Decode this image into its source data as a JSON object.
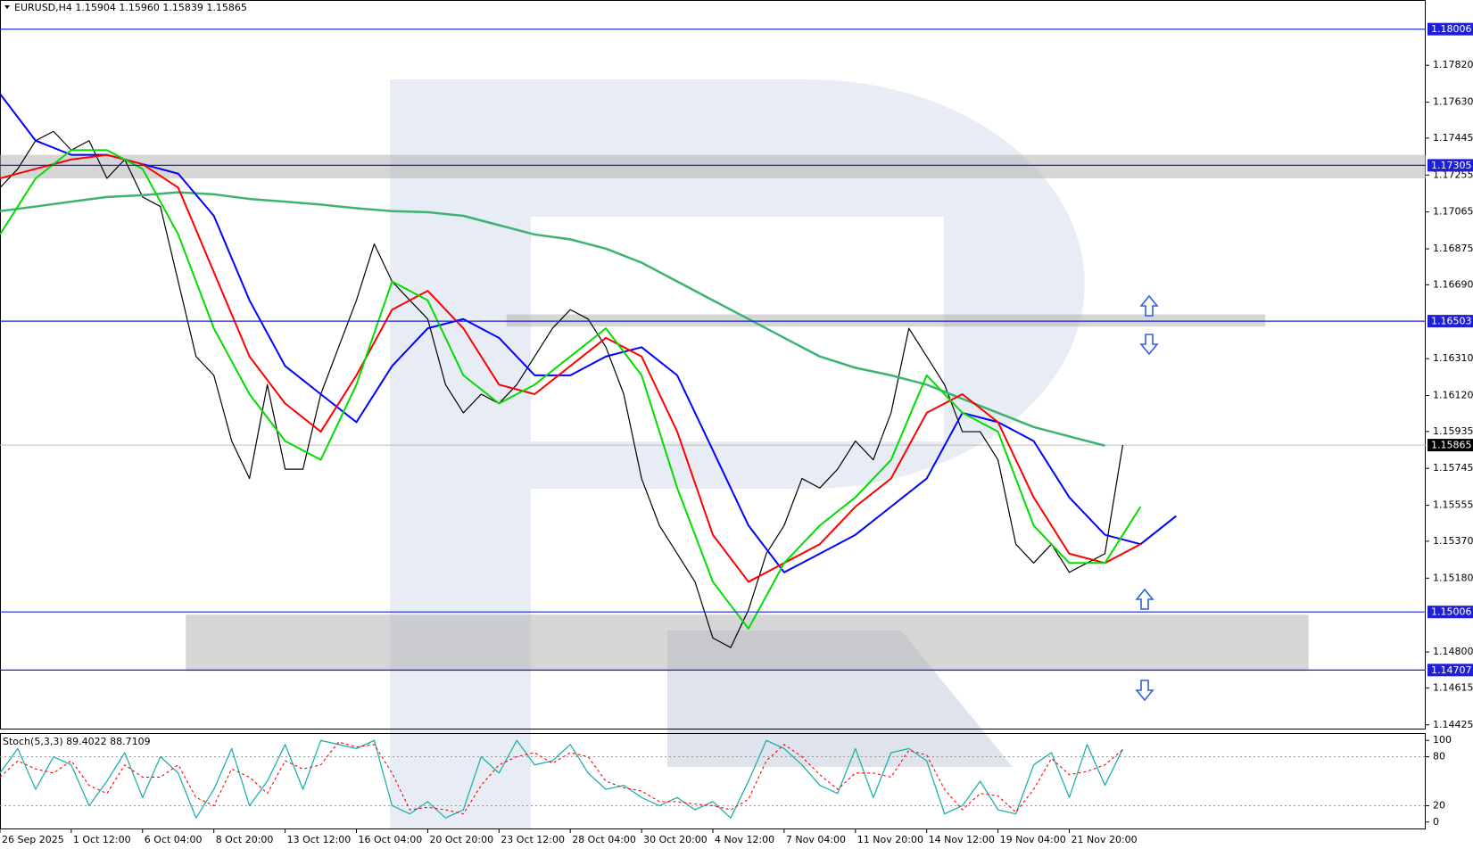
{
  "chart_data": [
    {
      "type": "line",
      "title": "EURUSD,H4  1.15904 1.15960 1.15839 1.15865",
      "xlim": [
        0,
        320
      ],
      "ylim": [
        1.14401,
        1.18156
      ],
      "yticks": [
        {
          "value": 1.1782,
          "label": "1.17820"
        },
        {
          "value": 1.1763,
          "label": "1.17630"
        },
        1.17445,
        1.17255,
        1.17065,
        1.16875,
        {
          "value": 1.1669,
          "label": "1.16690"
        },
        {
          "value": 1.1631,
          "label": "1.16310"
        },
        {
          "value": 1.1612,
          "label": "1.16120"
        },
        1.15935,
        1.15745,
        1.15555,
        {
          "value": 1.1537,
          "label": "1.15370"
        },
        {
          "value": 1.1518,
          "label": "1.15180"
        },
        {
          "value": 1.148,
          "label": "1.14800"
        },
        1.14615,
        1.14425
      ],
      "levels": [
        1.18006,
        1.17305,
        1.16503,
        1.15006,
        1.14707
      ],
      "last": 1.15865,
      "zones": [
        {
          "x": [
            0,
            320
          ],
          "y": [
            1.17359,
            1.17238
          ]
        },
        {
          "x": [
            113.7,
            284
          ],
          "y": [
            1.16538,
            1.16475
          ]
        },
        {
          "x": [
            41.7,
            293.7
          ],
          "y": [
            1.14992,
            1.14703
          ]
        }
      ],
      "series": [
        {
          "color": "#000000",
          "width": 1.2,
          "x": [
            0,
            4,
            8,
            12,
            16,
            20,
            24,
            28,
            32,
            36,
            40,
            44,
            48,
            52,
            56,
            60,
            64,
            68,
            72,
            76,
            80,
            84,
            88,
            92,
            96,
            100,
            104,
            108,
            112,
            116,
            120,
            124,
            128,
            132,
            136,
            140,
            144,
            148,
            152,
            156,
            160,
            164,
            168,
            172,
            176,
            180,
            184,
            188,
            192,
            196,
            200,
            204,
            208,
            212,
            216,
            220,
            224,
            228,
            232,
            236,
            240,
            244,
            248,
            252
          ],
          "values": [
            1.1719,
            1.17287,
            1.17432,
            1.1748,
            1.17383,
            1.17432,
            1.17238,
            1.17335,
            1.17142,
            1.17093,
            1.16707,
            1.16321,
            1.16224,
            1.15886,
            1.15693,
            1.16176,
            1.15741,
            1.15741,
            1.16127,
            1.16369,
            1.1661,
            1.169,
            1.16707,
            1.1661,
            1.16514,
            1.16176,
            1.16031,
            1.16127,
            1.16079,
            1.16176,
            1.16321,
            1.16466,
            1.16562,
            1.16514,
            1.16369,
            1.16127,
            1.15693,
            1.15451,
            1.15306,
            1.15161,
            1.14872,
            1.14823,
            1.15017,
            1.15306,
            1.15451,
            1.15693,
            1.15644,
            1.15741,
            1.15886,
            1.15789,
            1.16031,
            1.16466,
            1.16321,
            1.16176,
            1.15934,
            1.15934,
            1.15789,
            1.15355,
            1.15258,
            1.15355,
            1.1521,
            1.15258,
            1.15306,
            1.15865
          ]
        },
        {
          "color": "#3cb371",
          "width": 2.5,
          "x": [
            0,
            8,
            16,
            24,
            32,
            40,
            48,
            56,
            64,
            72,
            80,
            88,
            96,
            104,
            112,
            120,
            128,
            136,
            144,
            152,
            160,
            168,
            176,
            184,
            192,
            200,
            208,
            216,
            224,
            232,
            240,
            248,
            256,
            264
          ],
          "values": [
            1.17069,
            1.17093,
            1.17118,
            1.17142,
            1.17151,
            1.17166,
            1.17156,
            1.17132,
            1.17118,
            1.17103,
            1.17084,
            1.17069,
            1.17064,
            1.17045,
            1.16997,
            1.16949,
            1.16924,
            1.16876,
            1.16804,
            1.16707,
            1.1661,
            1.16514,
            1.16417,
            1.16321,
            1.16263,
            1.16224,
            1.16176,
            1.16103,
            1.16031,
            1.15958,
            1.1591,
            1.15862,
            null,
            null
          ]
        },
        {
          "color": "#0000ff",
          "width": 2,
          "x": [
            0,
            8,
            16,
            24,
            32,
            40,
            48,
            56,
            64,
            72,
            80,
            88,
            96,
            104,
            112,
            120,
            128,
            136,
            144,
            152,
            160,
            168,
            176,
            184,
            192,
            200,
            208,
            216,
            224,
            232,
            240,
            248,
            256,
            264
          ],
          "values": [
            1.17673,
            1.17432,
            1.17359,
            1.17359,
            1.17311,
            1.17262,
            1.17045,
            1.1661,
            1.16272,
            1.16127,
            1.15983,
            1.16272,
            1.16466,
            1.16514,
            1.16417,
            1.16224,
            1.16224,
            1.16321,
            1.16369,
            1.16224,
            1.15838,
            1.15451,
            1.1521,
            1.15306,
            1.15403,
            1.15548,
            1.15693,
            1.16031,
            1.15983,
            1.15886,
            1.15596,
            1.15403,
            1.15355,
            1.155
          ]
        },
        {
          "color": "#ff0000",
          "width": 2,
          "x": [
            0,
            8,
            16,
            24,
            32,
            40,
            48,
            56,
            64,
            72,
            80,
            88,
            96,
            104,
            112,
            120,
            128,
            136,
            144,
            152,
            160,
            168,
            176,
            184,
            192,
            200,
            208,
            216,
            224,
            232,
            240,
            248,
            256,
            264
          ],
          "values": [
            1.17238,
            1.17287,
            1.17335,
            1.17359,
            1.17311,
            1.1719,
            1.16755,
            1.16321,
            1.16079,
            1.15934,
            1.16224,
            1.16562,
            1.16659,
            1.16466,
            1.16176,
            1.16127,
            1.16272,
            1.16417,
            1.16321,
            1.15934,
            1.15403,
            1.15161,
            1.15258,
            1.15355,
            1.15548,
            1.15693,
            1.16031,
            1.16127,
            1.15983,
            1.15596,
            1.15306,
            1.15258,
            1.15355,
            null
          ]
        },
        {
          "color": "#00dd00",
          "width": 2,
          "x": [
            0,
            8,
            16,
            24,
            32,
            40,
            48,
            56,
            64,
            72,
            80,
            88,
            96,
            104,
            112,
            120,
            128,
            136,
            144,
            152,
            160,
            168,
            176,
            184,
            192,
            200,
            208,
            216,
            224,
            232,
            240,
            248,
            256,
            264
          ],
          "values": [
            1.16949,
            1.17238,
            1.17383,
            1.17383,
            1.17287,
            1.16949,
            1.16466,
            1.16127,
            1.15886,
            1.15789,
            1.16176,
            1.16707,
            1.1661,
            1.16224,
            1.16079,
            1.16176,
            1.16321,
            1.16466,
            1.16224,
            1.15644,
            1.15161,
            1.1492,
            1.15258,
            1.15451,
            1.15596,
            1.15789,
            1.16224,
            1.16031,
            1.15934,
            1.15451,
            1.15258,
            1.15258,
            1.15548,
            null
          ]
        }
      ]
    },
    {
      "type": "line",
      "title": "Stoch(5,3,3) 89.4022 88.7109",
      "xlim": [
        0,
        320
      ],
      "ylim": [
        -9,
        109
      ],
      "yticks": [
        100,
        80,
        20,
        0
      ],
      "guides": [
        80,
        20
      ],
      "xticks": [
        {
          "value": 0,
          "label": "26 Sep 2025"
        },
        {
          "value": 16,
          "label": "1 Oct 12:00"
        },
        {
          "value": 32,
          "label": "6 Oct 04:00"
        },
        {
          "value": 48,
          "label": "8 Oct 20:00"
        },
        {
          "value": 64,
          "label": "13 Oct 12:00"
        },
        {
          "value": 80,
          "label": "16 Oct 04:00"
        },
        {
          "value": 96,
          "label": "20 Oct 20:00"
        },
        {
          "value": 112,
          "label": "23 Oct 12:00"
        },
        {
          "value": 128,
          "label": "28 Oct 04:00"
        },
        {
          "value": 144,
          "label": "30 Oct 20:00"
        },
        {
          "value": 160,
          "label": "4 Nov 12:00"
        },
        {
          "value": 176,
          "label": "7 Nov 04:00"
        },
        {
          "value": 192,
          "label": "11 Nov 20:00"
        },
        {
          "value": 208,
          "label": "14 Nov 12:00"
        },
        {
          "value": 224,
          "label": "19 Nov 04:00"
        },
        {
          "value": 240,
          "label": "21 Nov 20:00"
        }
      ],
      "series": [
        {
          "color": "#20b2aa",
          "width": 1.3,
          "x": [
            0,
            4,
            8,
            12,
            16,
            20,
            24,
            28,
            32,
            36,
            40,
            44,
            48,
            52,
            56,
            60,
            64,
            68,
            72,
            76,
            80,
            84,
            88,
            92,
            96,
            100,
            104,
            108,
            112,
            116,
            120,
            124,
            128,
            132,
            136,
            140,
            144,
            148,
            152,
            156,
            160,
            164,
            168,
            172,
            176,
            180,
            184,
            188,
            192,
            196,
            200,
            204,
            208,
            212,
            216,
            220,
            224,
            228,
            232,
            236,
            240,
            244,
            248,
            252
          ],
          "values": [
            60,
            90,
            40,
            80,
            70,
            20,
            50,
            85,
            30,
            80,
            60,
            5,
            40,
            90,
            20,
            50,
            95,
            40,
            100,
            95,
            90,
            100,
            20,
            10,
            25,
            5,
            15,
            80,
            60,
            100,
            70,
            75,
            95,
            60,
            40,
            45,
            30,
            20,
            30,
            15,
            25,
            5,
            50,
            100,
            90,
            70,
            45,
            35,
            90,
            30,
            85,
            90,
            75,
            10,
            20,
            50,
            15,
            10,
            70,
            85,
            30,
            95,
            45,
            89.4022
          ]
        },
        {
          "color": "#ff0000",
          "width": 1.1,
          "dash": true,
          "x": [
            0,
            4,
            8,
            12,
            16,
            20,
            24,
            28,
            32,
            36,
            40,
            44,
            48,
            52,
            56,
            60,
            64,
            68,
            72,
            76,
            80,
            84,
            88,
            92,
            96,
            100,
            104,
            108,
            112,
            116,
            120,
            124,
            128,
            132,
            136,
            140,
            144,
            148,
            152,
            156,
            160,
            164,
            168,
            172,
            176,
            180,
            184,
            188,
            192,
            196,
            200,
            204,
            208,
            212,
            216,
            220,
            224,
            228,
            232,
            236,
            240,
            244,
            248,
            252
          ],
          "values": [
            55,
            75,
            65,
            60,
            75,
            45,
            35,
            70,
            55,
            55,
            70,
            30,
            20,
            65,
            55,
            35,
            75,
            65,
            70,
            98,
            92,
            95,
            60,
            15,
            18,
            15,
            10,
            45,
            70,
            80,
            85,
            72,
            85,
            80,
            50,
            42,
            38,
            25,
            25,
            22,
            20,
            15,
            28,
            75,
            95,
            80,
            58,
            40,
            60,
            60,
            55,
            88,
            82,
            40,
            15,
            35,
            32,
            12,
            40,
            78,
            58,
            62,
            70,
            88.7109
          ]
        }
      ]
    }
  ]
}
